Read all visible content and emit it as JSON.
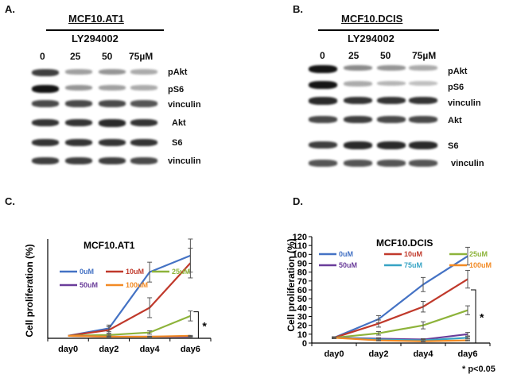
{
  "panels": {
    "A": {
      "letter": "A.",
      "title": "MCF10.AT1",
      "drug": "LY294002",
      "concentrations": [
        "0",
        "25",
        "50",
        "75µM"
      ],
      "rows": [
        {
          "label": "pAkt",
          "intensity": [
            0.8,
            0.35,
            0.4,
            0.3
          ]
        },
        {
          "label": "pS6",
          "intensity": [
            1.0,
            0.4,
            0.35,
            0.3
          ]
        },
        {
          "label": "vinculin",
          "intensity": [
            0.75,
            0.75,
            0.75,
            0.7
          ]
        },
        {
          "label": "Akt",
          "intensity": [
            0.85,
            0.85,
            0.9,
            0.85
          ]
        },
        {
          "label": "S6",
          "intensity": [
            0.85,
            0.85,
            0.85,
            0.85
          ]
        },
        {
          "label": "vinculin",
          "intensity": [
            0.8,
            0.8,
            0.8,
            0.75
          ]
        }
      ]
    },
    "B": {
      "letter": "B.",
      "title": "MCF10.DCIS",
      "drug": "LY294002",
      "concentrations": [
        "0",
        "25",
        "50",
        "75µM"
      ],
      "rows": [
        {
          "label": "pAkt",
          "intensity": [
            1.0,
            0.45,
            0.4,
            0.3
          ]
        },
        {
          "label": "pS6",
          "intensity": [
            1.0,
            0.3,
            0.25,
            0.2
          ]
        },
        {
          "label": "vinculin",
          "intensity": [
            0.9,
            0.85,
            0.85,
            0.85
          ]
        },
        {
          "label": "Akt",
          "intensity": [
            0.75,
            0.8,
            0.75,
            0.75
          ]
        },
        {
          "label": "S6",
          "intensity": [
            0.8,
            0.9,
            0.9,
            0.9
          ]
        },
        {
          "label": "vinculin",
          "intensity": [
            0.7,
            0.7,
            0.7,
            0.7
          ]
        }
      ]
    },
    "C": {
      "letter": "C."
    },
    "D": {
      "letter": "D."
    }
  },
  "footnote": "*  p<0.05",
  "chart_data": [
    {
      "type": "line",
      "title": "MCF10.AT1",
      "xlabel": "",
      "ylabel": "Cell proliferation (%)",
      "categories": [
        "day0",
        "day2",
        "day4",
        "day6"
      ],
      "ylim": [
        0,
        120
      ],
      "yticks": [],
      "significance": "*",
      "series": [
        {
          "name": "0uM",
          "color": "#4472c4",
          "values": [
            3,
            12,
            80,
            100
          ],
          "errors": [
            0,
            4,
            12,
            20
          ]
        },
        {
          "name": "10uM",
          "color": "#c0392b",
          "values": [
            3,
            10,
            37,
            91
          ],
          "errors": [
            0,
            4,
            12,
            18
          ]
        },
        {
          "name": "25uM",
          "color": "#8db33a",
          "values": [
            3,
            4,
            7,
            27
          ],
          "errors": [
            0,
            1,
            2,
            6
          ]
        },
        {
          "name": "50uM",
          "color": "#6a3d9a",
          "values": [
            3,
            2,
            2,
            2
          ],
          "errors": [
            0,
            0.5,
            0.5,
            0.5
          ]
        },
        {
          "name": "100uM",
          "color": "#f28a24",
          "values": [
            3,
            2,
            2,
            3
          ],
          "errors": [
            0,
            0.5,
            0.5,
            0.5
          ]
        }
      ]
    },
    {
      "type": "line",
      "title": "MCF10.DCIS",
      "xlabel": "",
      "ylabel": "Cell proliferation (%)",
      "categories": [
        "day0",
        "day2",
        "day4",
        "day6"
      ],
      "ylim": [
        0,
        120
      ],
      "yticks": [
        0,
        10,
        20,
        30,
        40,
        50,
        60,
        70,
        80,
        90,
        100,
        110,
        120
      ],
      "significance": "*",
      "series": [
        {
          "name": "0uM",
          "color": "#4472c4",
          "values": [
            6,
            27,
            66,
            98
          ],
          "errors": [
            1,
            4,
            8,
            10
          ]
        },
        {
          "name": "10uM",
          "color": "#c0392b",
          "values": [
            6,
            22,
            41,
            72
          ],
          "errors": [
            1,
            4,
            6,
            10
          ]
        },
        {
          "name": "25uM",
          "color": "#8db33a",
          "values": [
            6,
            11,
            20,
            37
          ],
          "errors": [
            1,
            2,
            4,
            5
          ]
        },
        {
          "name": "50uM",
          "color": "#6a3d9a",
          "values": [
            6,
            5,
            4,
            10
          ],
          "errors": [
            0.5,
            1,
            1,
            2
          ]
        },
        {
          "name": "75uM",
          "color": "#36a3c4",
          "values": [
            6,
            4,
            3,
            6
          ],
          "errors": [
            0.5,
            1,
            1,
            1
          ]
        },
        {
          "name": "100uM",
          "color": "#f28a24",
          "values": [
            6,
            3,
            2,
            3
          ],
          "errors": [
            0.5,
            0.5,
            0.5,
            0.5
          ]
        }
      ]
    }
  ]
}
